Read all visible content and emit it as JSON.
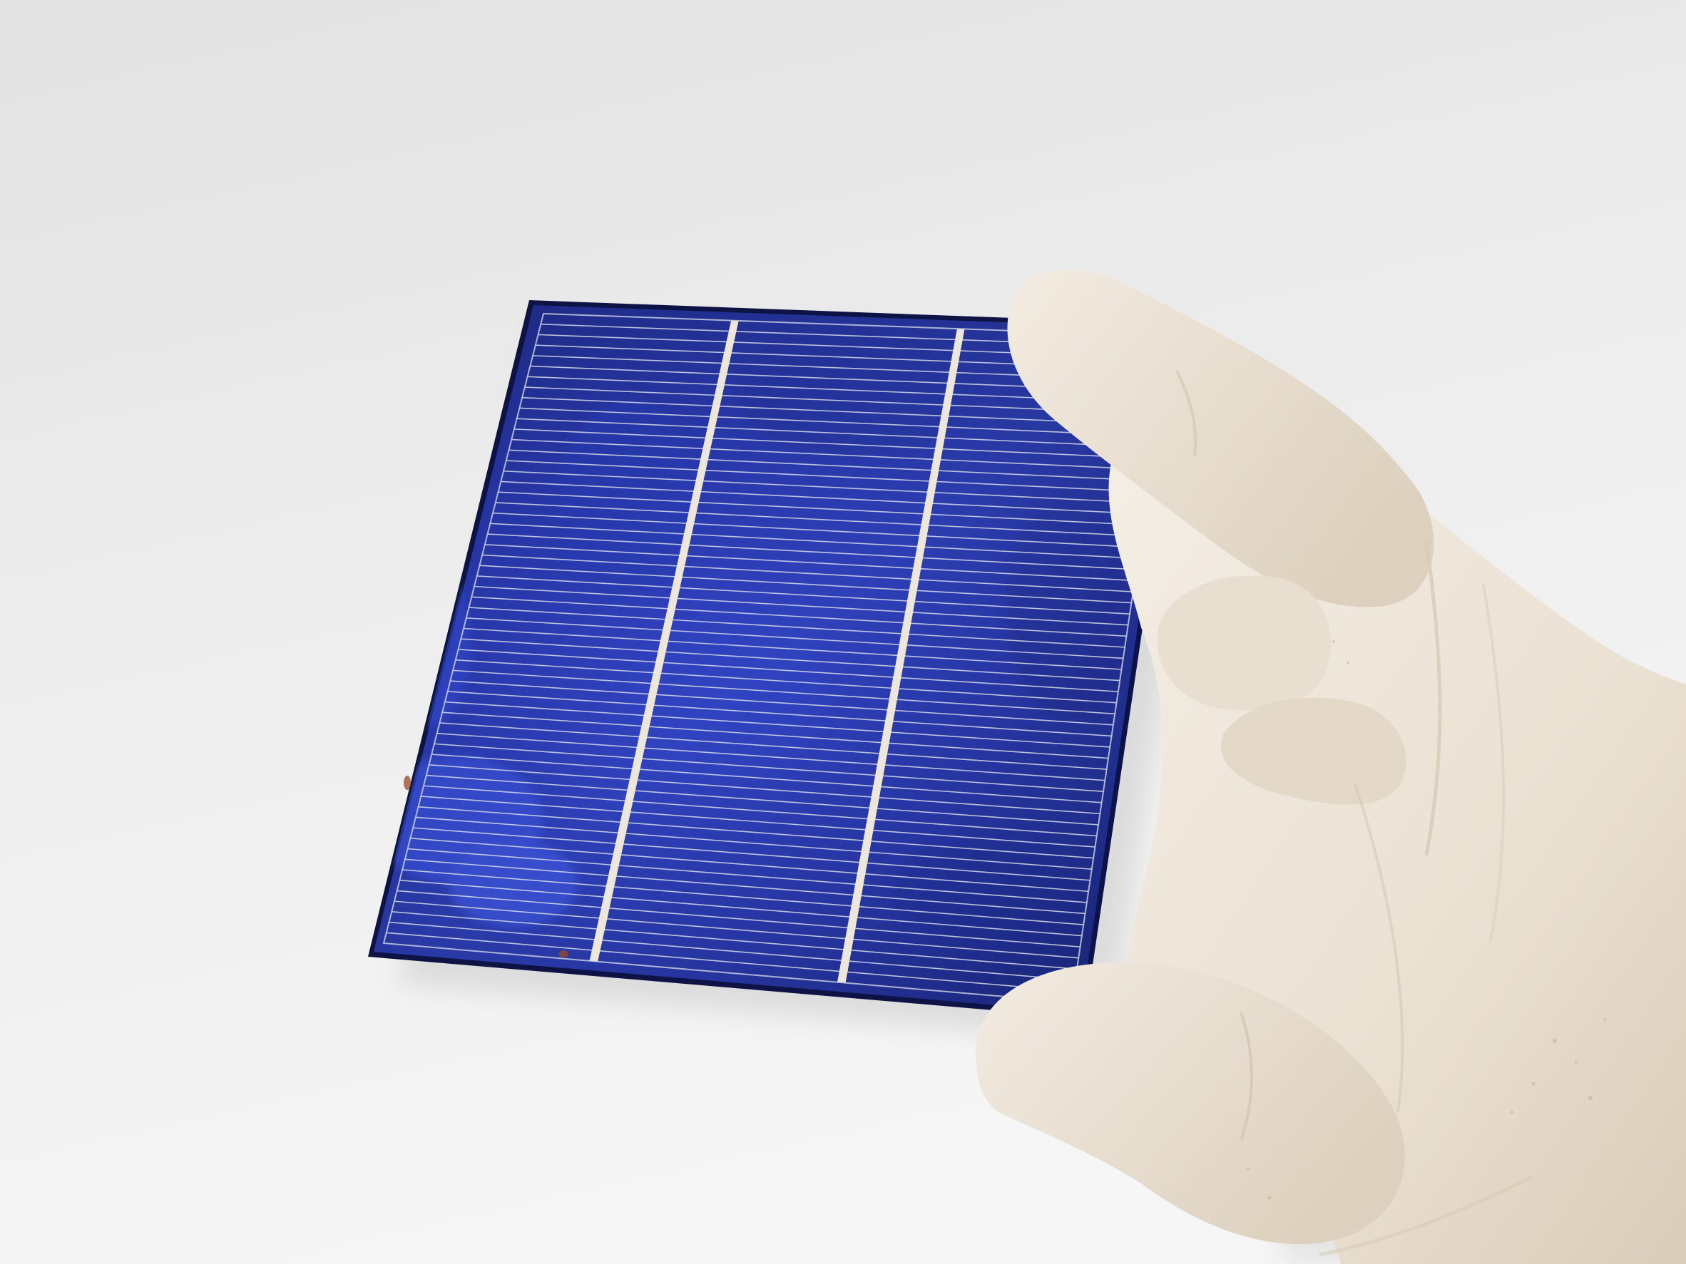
{
  "scene": {
    "subject": "solar-cell",
    "holder": "gloved-hand"
  },
  "solar_cell": {
    "finger_count": 60,
    "busbar_count": 2
  },
  "colors": {
    "background_top": "#e6e6e6",
    "background_bottom": "#f4f4f4",
    "cell_dark": "#16206b",
    "cell_mid": "#22309a",
    "cell_bright": "#3a4fd0",
    "cell_edge": "#0b1040",
    "finger_line": "#d8dbe6",
    "busbar": "#ece6dc",
    "glove_light": "#f3ece2",
    "glove_mid": "#e2d6c6",
    "glove_shadow": "#c7b8a4",
    "shadow": "#cfcfcf"
  }
}
